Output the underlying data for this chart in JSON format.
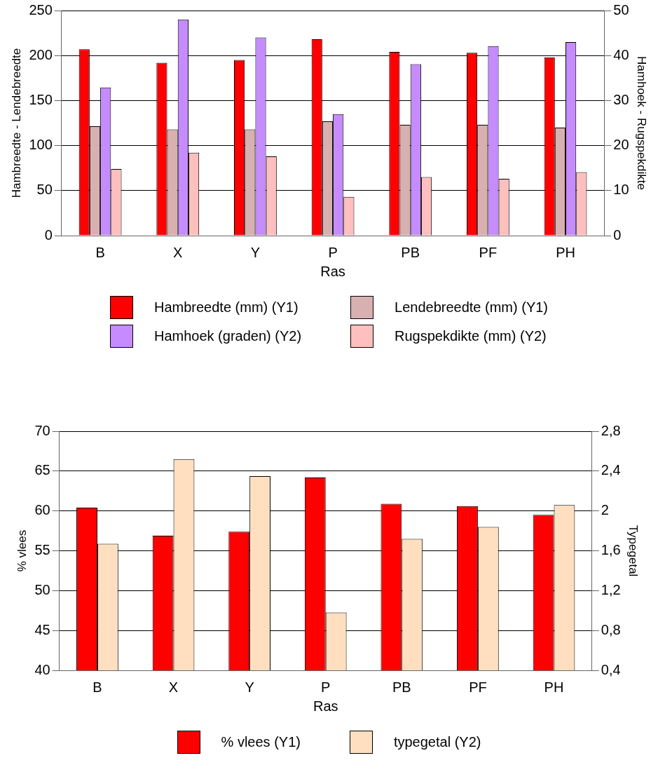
{
  "chart_data": [
    {
      "type": "bar",
      "categories": [
        "B",
        "X",
        "Y",
        "P",
        "PB",
        "PF",
        "PH"
      ],
      "xlabel": "Ras",
      "ylabel": "Hambreedte - Lendebreedte",
      "y2label": "Hamhoek - Rugspekdikte",
      "series": [
        {
          "name": "Hambreedte (mm) (Y1)",
          "color": "#ff0000",
          "values": [
            207,
            192,
            195,
            218,
            204,
            203,
            198
          ]
        },
        {
          "name": "Lendebreedte (mm) (Y1)",
          "color": "#d8b0b0",
          "values": [
            121.5,
            118,
            118,
            127,
            123,
            123,
            120
          ]
        },
        {
          "name": "Hamhoek (graden) (Y2)",
          "color": "#c58bff",
          "axis": "y2",
          "values": [
            32.9,
            48,
            44,
            27,
            38.1,
            42.1,
            43
          ]
        },
        {
          "name": "Rugspekdikte (mm) (Y2)",
          "color": "#ffbfbf",
          "axis": "y2",
          "values": [
            14.8,
            18.4,
            17.6,
            8.6,
            13,
            12.6,
            14.1
          ]
        }
      ],
      "ylim": [
        0,
        250
      ],
      "yticks": [
        0,
        50,
        100,
        150,
        200,
        250
      ],
      "y2lim": [
        0,
        50
      ],
      "y2ticks": [
        0,
        10,
        20,
        30,
        40,
        50
      ],
      "grid": "y",
      "legend": "bottom"
    },
    {
      "type": "bar",
      "categories": [
        "B",
        "X",
        "Y",
        "P",
        "PB",
        "PF",
        "PH"
      ],
      "xlabel": "Ras",
      "ylabel": "% vlees",
      "y2label": "Typegetal",
      "series": [
        {
          "name": "% vlees (Y1)",
          "color": "#ff0000",
          "values": [
            60.4,
            56.9,
            57.4,
            64.2,
            60.9,
            60.6,
            59.5
          ]
        },
        {
          "name": "typegetal (Y2)",
          "color": "#ffdfbf",
          "axis": "y2",
          "values": [
            1.67,
            2.52,
            2.35,
            0.98,
            1.72,
            1.84,
            2.06
          ]
        }
      ],
      "ylim": [
        40,
        70
      ],
      "yticks": [
        40,
        45,
        50,
        55,
        60,
        65,
        70
      ],
      "y2lim": [
        0.4,
        2.8
      ],
      "y2ticks": [
        {
          "value": 0.4,
          "label": "0,4"
        },
        {
          "value": 0.8,
          "label": "0,8"
        },
        {
          "value": 1.2,
          "label": "1,2"
        },
        {
          "value": 1.6,
          "label": "1,6"
        },
        2,
        {
          "value": 2.4,
          "label": "2,4"
        },
        {
          "value": 2.8,
          "label": "2,8"
        }
      ],
      "grid": "y",
      "legend": "bottom"
    }
  ]
}
